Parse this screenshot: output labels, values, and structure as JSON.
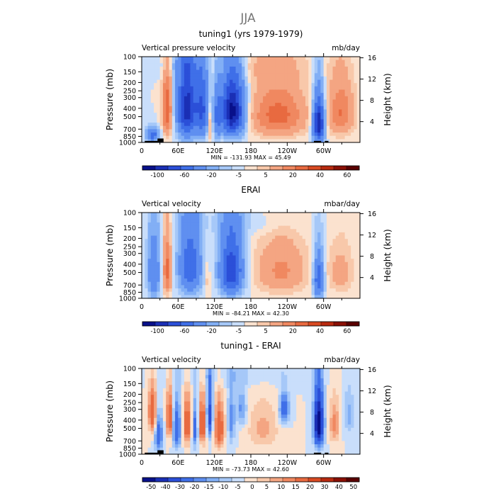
{
  "figure_title": "JJA",
  "chart_data": [
    {
      "type": "heatmap",
      "title": "tuning1 (yrs 1979-1979)",
      "left_label": "Vertical pressure velocity",
      "right_label": "mb/day",
      "ylabel": "Pressure (mb)",
      "y2label": "Height (km)",
      "xlabel": "",
      "x_range": [
        0,
        360
      ],
      "x_ticks": [
        {
          "lon": 60,
          "label": "60E"
        },
        {
          "lon": 120,
          "label": "120E"
        },
        {
          "lon": 180,
          "label": "180"
        },
        {
          "lon": 240,
          "label": "120W"
        },
        {
          "lon": 300,
          "label": "60W"
        }
      ],
      "x_zero_label": "0",
      "y_ticks": [
        "100",
        "150",
        "200",
        "250",
        "300",
        "400",
        "500",
        "700",
        "850",
        "1000"
      ],
      "height_ticks": [
        "16",
        "12",
        "8",
        "4"
      ],
      "min_max_text": "MIN = -131.93   MAX =  45.49",
      "colorbar_labels": [
        "-100",
        "-60",
        "-20",
        "-5",
        "5",
        "20",
        "40",
        "60"
      ],
      "colorbar_levels": [
        -120,
        -100,
        -80,
        -60,
        -40,
        -20,
        -10,
        -5,
        0,
        5,
        10,
        20,
        30,
        40,
        50,
        60,
        70
      ],
      "colorbar_colors": [
        "#08108a",
        "#1a2fb5",
        "#2b4fd8",
        "#3f6fe8",
        "#5f8ff0",
        "#82aff5",
        "#a6c8f8",
        "#c9defb",
        "#fbe2cf",
        "#f8c8aa",
        "#f4a582",
        "#f08860",
        "#e86a40",
        "#d84a22",
        "#b82a10",
        "#8a1005",
        "#5a0000"
      ],
      "surface_blocks": [
        {
          "start": 5,
          "end": 27,
          "bottom": 1000,
          "top": 960
        },
        {
          "start": 26,
          "end": 36,
          "bottom": 1000,
          "top": 900
        },
        {
          "start": 284,
          "end": 296,
          "bottom": 1000,
          "top": 960
        },
        {
          "start": 302,
          "end": 308,
          "bottom": 1000,
          "top": 960
        }
      ],
      "field_features": [
        {
          "lon": 18,
          "hw": 10,
          "p": 820,
          "hp": 150,
          "amp": -50
        },
        {
          "lon": 42,
          "hw": 8,
          "p": 420,
          "hp": 350,
          "amp": 40
        },
        {
          "lon": 75,
          "hw": 16,
          "p": 400,
          "hp": 400,
          "amp": -90
        },
        {
          "lon": 100,
          "hw": 10,
          "p": 420,
          "hp": 360,
          "amp": -60
        },
        {
          "lon": 112,
          "hw": 4,
          "p": 600,
          "hp": 300,
          "amp": 20
        },
        {
          "lon": 150,
          "hw": 18,
          "p": 440,
          "hp": 330,
          "amp": -110
        },
        {
          "lon": 125,
          "hw": 6,
          "p": 500,
          "hp": 320,
          "amp": -40
        },
        {
          "lon": 225,
          "hw": 45,
          "p": 480,
          "hp": 330,
          "amp": 35
        },
        {
          "lon": 292,
          "hw": 9,
          "p": 600,
          "hp": 340,
          "amp": -100
        },
        {
          "lon": 328,
          "hw": 22,
          "p": 450,
          "hp": 330,
          "amp": 30
        },
        {
          "lon": 190,
          "hw": 80,
          "p": 130,
          "hp": 50,
          "amp": 6
        },
        {
          "lon": 60,
          "hw": 50,
          "p": 130,
          "hp": 40,
          "amp": -7
        }
      ]
    },
    {
      "type": "heatmap",
      "title": "ERAI",
      "left_label": "Vertical velocity",
      "right_label": "mbar/day",
      "ylabel": "Pressure (mb)",
      "y2label": "Height (km)",
      "xlabel": "",
      "x_range": [
        0,
        360
      ],
      "x_ticks": [
        {
          "lon": 60,
          "label": "60E"
        },
        {
          "lon": 120,
          "label": "120E"
        },
        {
          "lon": 180,
          "label": "180"
        },
        {
          "lon": 240,
          "label": "120W"
        },
        {
          "lon": 300,
          "label": "60W"
        }
      ],
      "x_zero_label": "0",
      "y_ticks": [
        "100",
        "150",
        "200",
        "250",
        "300",
        "400",
        "500",
        "700",
        "850",
        "1000"
      ],
      "height_ticks": [
        "16",
        "12",
        "8",
        "4"
      ],
      "min_max_text": "MIN = -84.21   MAX =  42.30",
      "colorbar_labels": [
        "-100",
        "-60",
        "-20",
        "-5",
        "5",
        "20",
        "40",
        "60"
      ],
      "colorbar_levels": [
        -120,
        -100,
        -80,
        -60,
        -40,
        -20,
        -10,
        -5,
        0,
        5,
        10,
        20,
        30,
        40,
        50,
        60,
        70
      ],
      "colorbar_colors": [
        "#08108a",
        "#1a2fb5",
        "#2b4fd8",
        "#3f6fe8",
        "#5f8ff0",
        "#82aff5",
        "#a6c8f8",
        "#c9defb",
        "#fbe2cf",
        "#f8c8aa",
        "#f4a582",
        "#f08860",
        "#e86a40",
        "#d84a22",
        "#b82a10",
        "#8a1005",
        "#5a0000"
      ],
      "surface_blocks": [],
      "field_features": [
        {
          "lon": 20,
          "hw": 10,
          "p": 500,
          "hp": 400,
          "amp": -40
        },
        {
          "lon": 42,
          "hw": 7,
          "p": 480,
          "hp": 350,
          "amp": 35
        },
        {
          "lon": 80,
          "hw": 18,
          "p": 420,
          "hp": 400,
          "amp": -55
        },
        {
          "lon": 108,
          "hw": 5,
          "p": 600,
          "hp": 300,
          "amp": 10
        },
        {
          "lon": 148,
          "hw": 18,
          "p": 470,
          "hp": 360,
          "amp": -80
        },
        {
          "lon": 230,
          "hw": 42,
          "p": 480,
          "hp": 350,
          "amp": 22
        },
        {
          "lon": 292,
          "hw": 8,
          "p": 600,
          "hp": 330,
          "amp": -60
        },
        {
          "lon": 328,
          "hw": 22,
          "p": 500,
          "hp": 330,
          "amp": 14
        },
        {
          "lon": 180,
          "hw": 90,
          "p": 130,
          "hp": 50,
          "amp": -6
        }
      ]
    },
    {
      "type": "heatmap",
      "title": "tuning1 - ERAI",
      "left_label": "Vertical velocity",
      "right_label": "mbar/day",
      "ylabel": "Pressure (mb)",
      "y2label": "Height (km)",
      "xlabel": "",
      "x_range": [
        0,
        360
      ],
      "x_ticks": [
        {
          "lon": 60,
          "label": "60E"
        },
        {
          "lon": 120,
          "label": "120E"
        },
        {
          "lon": 180,
          "label": "180"
        },
        {
          "lon": 240,
          "label": "120W"
        },
        {
          "lon": 300,
          "label": "60W"
        }
      ],
      "x_zero_label": "0",
      "y_ticks": [
        "100",
        "150",
        "200",
        "250",
        "300",
        "400",
        "500",
        "700",
        "850",
        "1000"
      ],
      "height_ticks": [
        "16",
        "12",
        "8",
        "4"
      ],
      "min_max_text": "MIN = -73.73   MAX =  42.60",
      "colorbar_labels": [
        "-50",
        "-40",
        "-30",
        "-20",
        "-15",
        "-10",
        "-5",
        "0",
        "5",
        "10",
        "15",
        "20",
        "30",
        "40",
        "50"
      ],
      "colorbar_levels": [
        -60,
        -50,
        -40,
        -30,
        -20,
        -15,
        -10,
        -5,
        0,
        5,
        10,
        15,
        20,
        30,
        40,
        50,
        60
      ],
      "colorbar_colors": [
        "#08108a",
        "#1a2fb5",
        "#2b4fd8",
        "#3f6fe8",
        "#5f8ff0",
        "#82aff5",
        "#a6c8f8",
        "#c9defb",
        "#fbe2cf",
        "#f8c8aa",
        "#f4a582",
        "#f08860",
        "#e86a40",
        "#d84a22",
        "#b82a10",
        "#8a1005",
        "#5a0000"
      ],
      "surface_blocks": [
        {
          "start": 5,
          "end": 27,
          "bottom": 1000,
          "top": 960
        },
        {
          "start": 26,
          "end": 36,
          "bottom": 1000,
          "top": 900
        },
        {
          "start": 284,
          "end": 296,
          "bottom": 1000,
          "top": 960
        },
        {
          "start": 302,
          "end": 308,
          "bottom": 1000,
          "top": 960
        }
      ],
      "field_features": [
        {
          "lon": 18,
          "hw": 7,
          "p": 330,
          "hp": 200,
          "amp": 30
        },
        {
          "lon": 28,
          "hw": 6,
          "p": 600,
          "hp": 300,
          "amp": -30
        },
        {
          "lon": 46,
          "hw": 5,
          "p": 380,
          "hp": 250,
          "amp": 30
        },
        {
          "lon": 58,
          "hw": 7,
          "p": 500,
          "hp": 300,
          "amp": -30
        },
        {
          "lon": 75,
          "hw": 7,
          "p": 450,
          "hp": 280,
          "amp": 30
        },
        {
          "lon": 88,
          "hw": 5,
          "p": 500,
          "hp": 300,
          "amp": -25
        },
        {
          "lon": 100,
          "hw": 6,
          "p": 450,
          "hp": 280,
          "amp": 30
        },
        {
          "lon": 112,
          "hw": 5,
          "p": 350,
          "hp": 250,
          "amp": -35
        },
        {
          "lon": 128,
          "hw": 8,
          "p": 500,
          "hp": 300,
          "amp": 30
        },
        {
          "lon": 148,
          "hw": 6,
          "p": 400,
          "hp": 300,
          "amp": -18
        },
        {
          "lon": 165,
          "hw": 8,
          "p": 300,
          "hp": 150,
          "amp": -18
        },
        {
          "lon": 200,
          "hw": 25,
          "p": 500,
          "hp": 300,
          "amp": 12
        },
        {
          "lon": 235,
          "hw": 8,
          "p": 300,
          "hp": 120,
          "amp": -30
        },
        {
          "lon": 292,
          "hw": 8,
          "p": 450,
          "hp": 330,
          "amp": -60
        },
        {
          "lon": 318,
          "hw": 8,
          "p": 450,
          "hp": 250,
          "amp": 18
        },
        {
          "lon": 342,
          "hw": 10,
          "p": 350,
          "hp": 200,
          "amp": -12
        },
        {
          "lon": 150,
          "hw": 100,
          "p": 120,
          "hp": 40,
          "amp": -6
        }
      ]
    }
  ]
}
